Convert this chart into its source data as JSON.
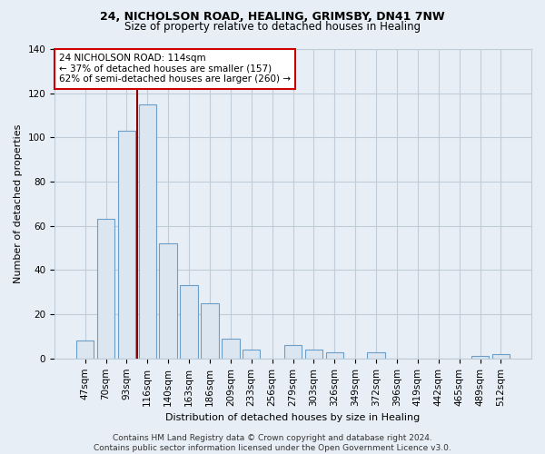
{
  "title_line1": "24, NICHOLSON ROAD, HEALING, GRIMSBY, DN41 7NW",
  "title_line2": "Size of property relative to detached houses in Healing",
  "xlabel": "Distribution of detached houses by size in Healing",
  "ylabel": "Number of detached properties",
  "categories": [
    "47sqm",
    "70sqm",
    "93sqm",
    "116sqm",
    "140sqm",
    "163sqm",
    "186sqm",
    "209sqm",
    "233sqm",
    "256sqm",
    "279sqm",
    "303sqm",
    "326sqm",
    "349sqm",
    "372sqm",
    "396sqm",
    "419sqm",
    "442sqm",
    "465sqm",
    "489sqm",
    "512sqm"
  ],
  "values": [
    8,
    63,
    103,
    115,
    52,
    33,
    25,
    9,
    4,
    0,
    6,
    4,
    3,
    0,
    3,
    0,
    0,
    0,
    0,
    1,
    2
  ],
  "bar_color": "#dce6f0",
  "bar_edgecolor": "#6b9ec8",
  "ref_line_x": 3.0,
  "ref_line_color": "#8b0000",
  "annotation_box_text": "24 NICHOLSON ROAD: 114sqm\n← 37% of detached houses are smaller (157)\n62% of semi-detached houses are larger (260) →",
  "ylim": [
    0,
    140
  ],
  "yticks": [
    0,
    20,
    40,
    60,
    80,
    100,
    120,
    140
  ],
  "footnote": "Contains HM Land Registry data © Crown copyright and database right 2024.\nContains public sector information licensed under the Open Government Licence v3.0.",
  "background_color": "#e8eef5",
  "plot_background_color": "#e8eef5",
  "grid_color": "#c0ccd8",
  "title1_fontsize": 9,
  "title2_fontsize": 8.5,
  "ylabel_fontsize": 8,
  "xlabel_fontsize": 8,
  "tick_fontsize": 7.5,
  "ann_fontsize": 7.5
}
